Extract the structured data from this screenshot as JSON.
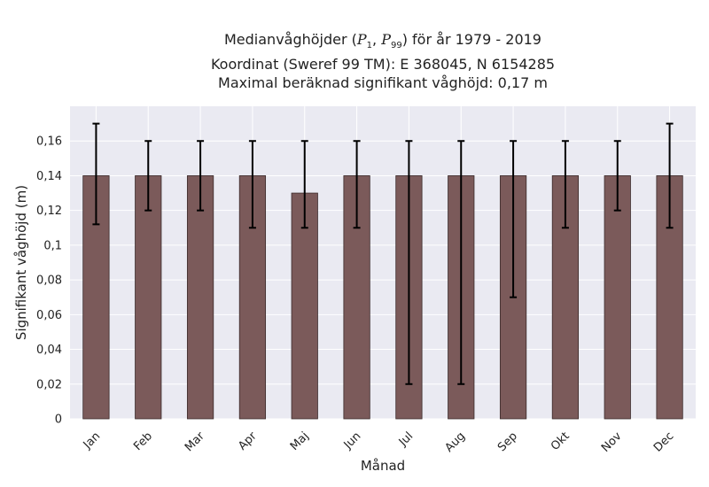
{
  "chart_data": {
    "type": "bar",
    "title_parts": {
      "prefix": "Medianvåghöjder (",
      "p1_base": "P",
      "p1_sub": "1",
      "sep": ", ",
      "p99_base": "P",
      "p99_sub": "99",
      "suffix": ") för år 1979 - 2019"
    },
    "subtitle_lines": [
      "Koordinat (Sweref 99 TM): E 368045, N 6154285",
      "Maximal beräknad signifikant våghöjd: 0,17 m"
    ],
    "xlabel": "Månad",
    "ylabel": "Signifikant våghöjd (m)",
    "ylim": [
      0,
      0.18
    ],
    "yticks": [
      0,
      0.02,
      0.04,
      0.06,
      0.08,
      0.1,
      0.12,
      0.14,
      0.16
    ],
    "ytick_labels": [
      "0",
      "0,02",
      "0,04",
      "0,06",
      "0,08",
      "0,1",
      "0,12",
      "0,14",
      "0,16"
    ],
    "categories": [
      "Jan",
      "Feb",
      "Mar",
      "Apr",
      "Maj",
      "Jun",
      "Jul",
      "Aug",
      "Sep",
      "Okt",
      "Nov",
      "Dec"
    ],
    "values": [
      0.14,
      0.14,
      0.14,
      0.14,
      0.13,
      0.14,
      0.14,
      0.14,
      0.14,
      0.14,
      0.14,
      0.14
    ],
    "err_low": [
      0.112,
      0.12,
      0.12,
      0.11,
      0.11,
      0.11,
      0.02,
      0.02,
      0.07,
      0.11,
      0.12,
      0.11
    ],
    "err_high": [
      0.17,
      0.16,
      0.16,
      0.16,
      0.16,
      0.16,
      0.16,
      0.16,
      0.16,
      0.16,
      0.16,
      0.17
    ],
    "grid": true,
    "colors": {
      "bar": "#7b5a5a",
      "bar_edge": "#3a2a2a",
      "plot_bg": "#eaeaf2",
      "grid": "#ffffff",
      "error": "#000000"
    }
  }
}
